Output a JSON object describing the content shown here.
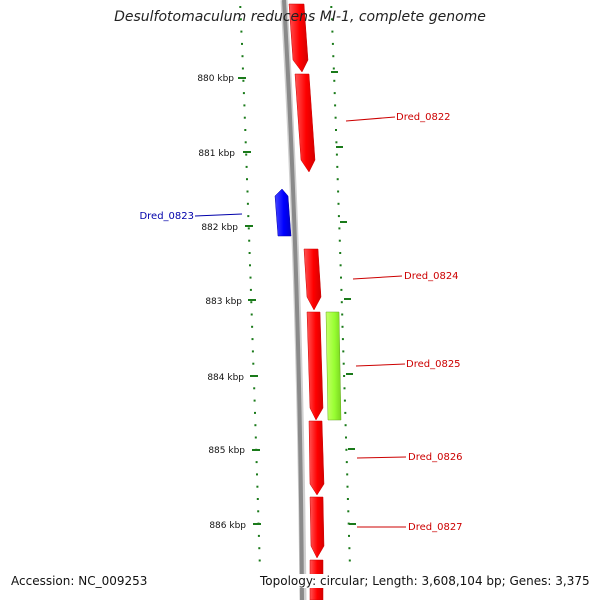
{
  "title": "Desulfotomaculum reducens MI-1, complete genome",
  "footer": {
    "accession": "Accession: NC_009253",
    "topology": "Topology: circular; Length: 3,608,104 bp; Genes: 3,375"
  },
  "ticks": [
    "880 kbp",
    "881 kbp",
    "882 kbp",
    "883 kbp",
    "884 kbp",
    "885 kbp",
    "886 kbp"
  ],
  "genes": [
    {
      "label": "",
      "strand": "forward",
      "color": "#ff0000"
    },
    {
      "label": "Dred_0822",
      "strand": "forward",
      "color": "#ff0000"
    },
    {
      "label": "Dred_0823",
      "strand": "reverse",
      "color": "#0000ff"
    },
    {
      "label": "Dred_0824",
      "strand": "forward",
      "color": "#ff0000"
    },
    {
      "label": "Dred_0825",
      "strand": "forward",
      "color": "#ff0000"
    },
    {
      "label": "",
      "strand": "forward",
      "color": "#99ff33"
    },
    {
      "label": "Dred_0826",
      "strand": "forward",
      "color": "#ff0000"
    },
    {
      "label": "Dred_0827",
      "strand": "forward",
      "color": "#ff0000"
    },
    {
      "label": "",
      "strand": "forward",
      "color": "#ff0000"
    }
  ],
  "colors": {
    "backbone": "#8a8a8a",
    "gc_skew": "#1a7a1a",
    "forward_gene": "#ff0000",
    "reverse_gene": "#0000ff",
    "other_feature": "#99ff33",
    "forward_label": "#cc0000",
    "reverse_label": "#0000aa"
  }
}
